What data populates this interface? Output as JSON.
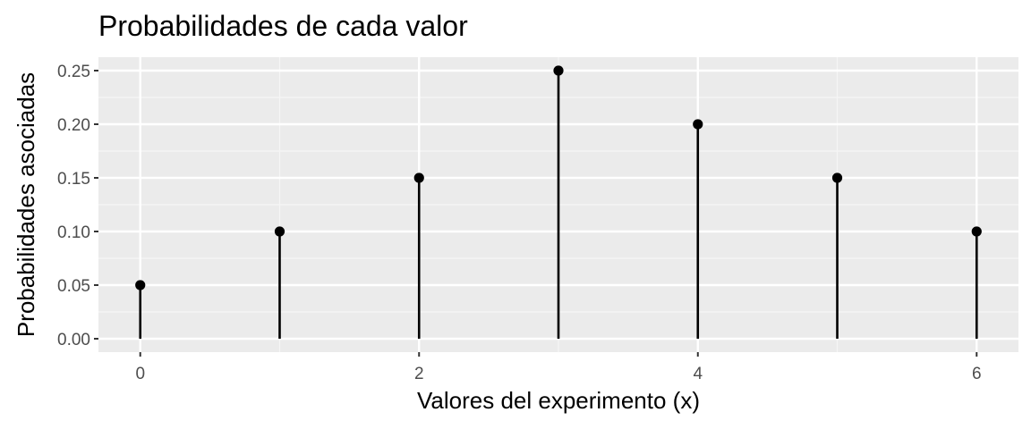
{
  "chart_data": {
    "type": "lollipop",
    "title": "Probabilidades de cada valor",
    "xlabel": "Valores del experimento (x)",
    "ylabel": "Probabilidades asociadas",
    "x": [
      0,
      1,
      2,
      3,
      4,
      5,
      6
    ],
    "values": [
      0.05,
      0.1,
      0.15,
      0.25,
      0.2,
      0.15,
      0.1
    ],
    "x_ticks": [
      "0",
      "2",
      "4",
      "6"
    ],
    "y_ticks": [
      "0.00",
      "0.05",
      "0.10",
      "0.15",
      "0.20",
      "0.25"
    ],
    "xlim": [
      -0.3,
      6.3
    ],
    "ylim": [
      -0.0125,
      0.2625
    ],
    "grid": true,
    "colors": {
      "panel_background": "#ebebeb",
      "grid_major": "#ffffff",
      "grid_minor": "#f5f5f5",
      "mark": "#000000",
      "tick_label": "#4d4d4d"
    }
  }
}
